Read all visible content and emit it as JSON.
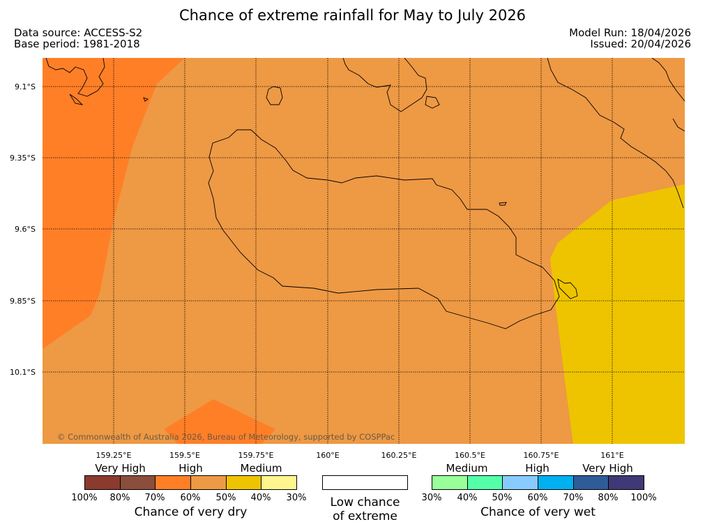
{
  "title": "Chance of extreme rainfall for May to July 2026",
  "meta": {
    "data_source": "Data source: ACCESS-S2",
    "base_period": "Base period: 1981-2018",
    "model_run": "Model Run: 18/04/2026",
    "issued": "Issued: 20/04/2026"
  },
  "map": {
    "lat_labels": [
      "9.1°S",
      "9.35°S",
      "9.6°S",
      "9.85°S",
      "10.1°S"
    ],
    "lon_labels": [
      "159.25°E",
      "159.5°E",
      "159.75°E",
      "160°E",
      "160.25°E",
      "160.5°E",
      "160.75°E",
      "161°E"
    ],
    "copyright": "© Commonwealth of Australia 2026, Bureau of Meteorology, supported by COSPPac",
    "background_color": "#EE9944",
    "zones": [
      {
        "name": "dry-high-60-70",
        "color": "#FF7F27"
      },
      {
        "name": "dry-medium-40-50",
        "color": "#EEC400"
      }
    ]
  },
  "legend": {
    "dry": {
      "categories": [
        "Very High",
        "High",
        "Medium"
      ],
      "colors": [
        "#8B3A2E",
        "#8B4E3C",
        "#FF7F27",
        "#EE9944",
        "#EEC400",
        "#FFF68F"
      ],
      "ticks": [
        "100%",
        "80%",
        "70%",
        "60%",
        "50%",
        "40%",
        "30%"
      ],
      "caption": "Chance of very dry"
    },
    "low": {
      "color": "#FFFFFF",
      "caption_line1": "Low chance",
      "caption_line2": "of extreme"
    },
    "wet": {
      "categories": [
        "Medium",
        "High",
        "Very High"
      ],
      "colors": [
        "#99FF99",
        "#55FFAA",
        "#88CCFF",
        "#00B0F0",
        "#2F5C99",
        "#3F3A77"
      ],
      "ticks": [
        "30%",
        "40%",
        "50%",
        "60%",
        "70%",
        "80%",
        "100%"
      ],
      "caption": "Chance of very wet"
    }
  }
}
